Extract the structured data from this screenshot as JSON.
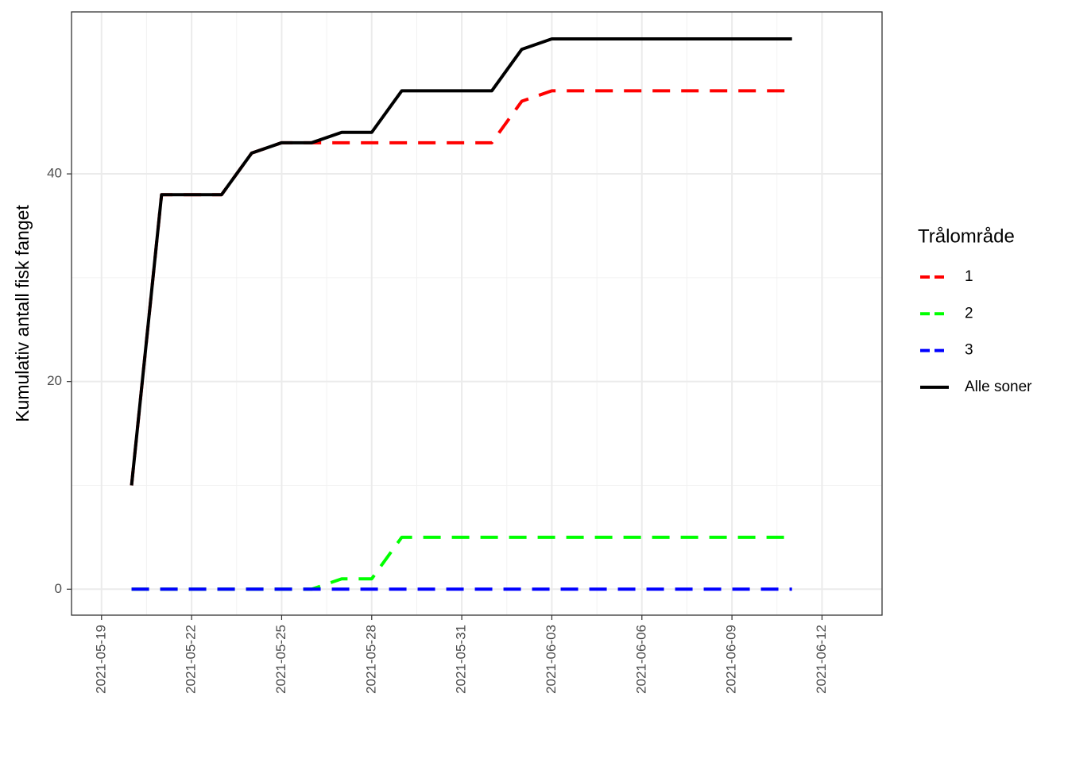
{
  "chart_data": {
    "type": "line",
    "y_label": "Kumulativ antall fisk fanget",
    "legend_title": "Trålområde",
    "legend_position": "right",
    "grid": true,
    "x": [
      "2021-05-20",
      "2021-05-21",
      "2021-05-22",
      "2021-05-23",
      "2021-05-24",
      "2021-05-25",
      "2021-05-26",
      "2021-05-27",
      "2021-05-28",
      "2021-05-29",
      "2021-05-30",
      "2021-05-31",
      "2021-06-01",
      "2021-06-02",
      "2021-06-03",
      "2021-06-04",
      "2021-06-05",
      "2021-06-06",
      "2021-06-07",
      "2021-06-08",
      "2021-06-09",
      "2021-06-10",
      "2021-06-11"
    ],
    "xlim": [
      "2021-05-18",
      "2021-06-14"
    ],
    "xticks": [
      "2021-05-19",
      "2021-05-22",
      "2021-05-25",
      "2021-05-28",
      "2021-05-31",
      "2021-06-03",
      "2021-06-06",
      "2021-06-09",
      "2021-06-12"
    ],
    "ylim": [
      -2.5,
      55.6
    ],
    "yticks": [
      0,
      20,
      40
    ],
    "series": [
      {
        "name": "1",
        "color": "#ff0000",
        "linetype": "dashed",
        "values": [
          10,
          38,
          38,
          38,
          42,
          43,
          43,
          43,
          43,
          43,
          43,
          43,
          43,
          47,
          48,
          48,
          48,
          48,
          48,
          48,
          48,
          48,
          48
        ]
      },
      {
        "name": "2",
        "color": "#00ff00",
        "linetype": "dashed",
        "values": [
          0,
          0,
          0,
          0,
          0,
          0,
          0,
          1,
          1,
          5,
          5,
          5,
          5,
          5,
          5,
          5,
          5,
          5,
          5,
          5,
          5,
          5,
          5
        ]
      },
      {
        "name": "3",
        "color": "#0000ff",
        "linetype": "dashed",
        "values": [
          0,
          0,
          0,
          0,
          0,
          0,
          0,
          0,
          0,
          0,
          0,
          0,
          0,
          0,
          0,
          0,
          0,
          0,
          0,
          0,
          0,
          0,
          0
        ]
      },
      {
        "name": "Alle soner",
        "color": "#000000",
        "linetype": "solid",
        "values": [
          10,
          38,
          38,
          38,
          42,
          43,
          43,
          44,
          44,
          48,
          48,
          48,
          48,
          52,
          53,
          53,
          53,
          53,
          53,
          53,
          53,
          53,
          53
        ]
      }
    ]
  }
}
